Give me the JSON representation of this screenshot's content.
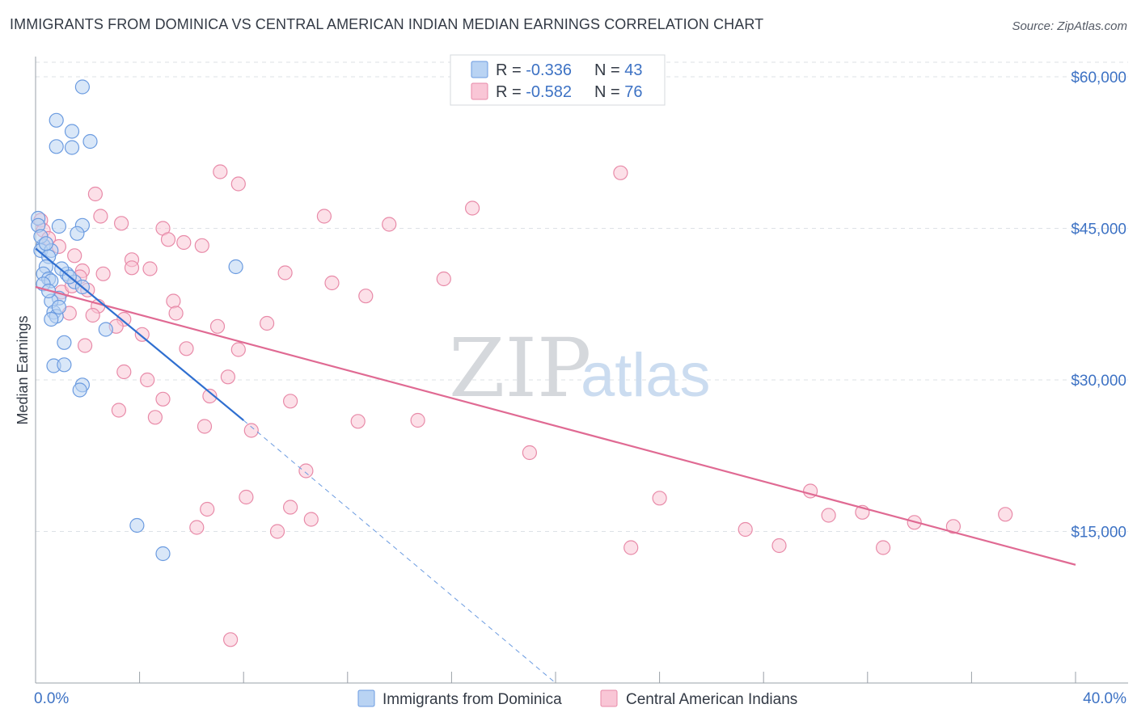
{
  "header": {
    "title": "IMMIGRANTS FROM DOMINICA VS CENTRAL AMERICAN INDIAN MEDIAN EARNINGS CORRELATION CHART",
    "source": "Source: ZipAtlas.com"
  },
  "watermark": {
    "zip": "ZIP",
    "atlas": "atlas"
  },
  "colors": {
    "blue_fill": "#b9d3f3",
    "blue_stroke": "#6b9be0",
    "blue_line": "#2f6fd0",
    "pink_fill": "#f9c6d6",
    "pink_stroke": "#e88aa8",
    "pink_line": "#e06a93",
    "grid": "#dde1e6",
    "axis_text": "#3d72c4"
  },
  "legend": {
    "rows": [
      {
        "r_label": "R = ",
        "r_value": "-0.336",
        "n_label": "N = ",
        "n_value": "43"
      },
      {
        "r_label": "R = ",
        "r_value": "-0.582",
        "n_label": "N = ",
        "n_value": "76"
      }
    ]
  },
  "chart_data": {
    "type": "scatter",
    "title": "IMMIGRANTS FROM DOMINICA VS CENTRAL AMERICAN INDIAN MEDIAN EARNINGS CORRELATION CHART",
    "xlabel": "",
    "ylabel": "Median Earnings",
    "xlim": [
      0,
      40
    ],
    "ylim": [
      0,
      62000
    ],
    "x_tick_labels": [
      "0.0%",
      "40.0%"
    ],
    "y_ticks": [
      15000,
      30000,
      45000,
      60000
    ],
    "y_tick_labels": [
      "$15,000",
      "$30,000",
      "$45,000",
      "$60,000"
    ],
    "grid": true,
    "legend_position": "top-center",
    "series": [
      {
        "name": "Immigrants from Dominica",
        "R": -0.336,
        "N": 43,
        "trend": {
          "x": [
            0.0,
            8.0
          ],
          "y": [
            43000,
            26000
          ]
        },
        "trend_extension": {
          "x": [
            8.0,
            20.0
          ],
          "y": [
            26000,
            0
          ]
        },
        "points": [
          [
            1.8,
            59000
          ],
          [
            0.8,
            55700
          ],
          [
            1.4,
            54600
          ],
          [
            0.8,
            53100
          ],
          [
            2.1,
            53600
          ],
          [
            1.4,
            53000
          ],
          [
            0.1,
            46000
          ],
          [
            1.8,
            45300
          ],
          [
            0.1,
            45300
          ],
          [
            0.9,
            45200
          ],
          [
            1.6,
            44500
          ],
          [
            0.3,
            43300
          ],
          [
            0.2,
            42800
          ],
          [
            0.6,
            42800
          ],
          [
            0.5,
            42200
          ],
          [
            7.7,
            41200
          ],
          [
            0.4,
            41200
          ],
          [
            0.3,
            40500
          ],
          [
            1.2,
            40500
          ],
          [
            0.5,
            40000
          ],
          [
            0.6,
            39800
          ],
          [
            1.5,
            39700
          ],
          [
            1.8,
            39200
          ],
          [
            0.9,
            38100
          ],
          [
            0.6,
            37800
          ],
          [
            0.7,
            36700
          ],
          [
            0.8,
            36300
          ],
          [
            0.6,
            36000
          ],
          [
            2.7,
            35000
          ],
          [
            1.1,
            33700
          ],
          [
            0.7,
            31400
          ],
          [
            1.1,
            31500
          ],
          [
            1.8,
            29500
          ],
          [
            1.7,
            29000
          ],
          [
            3.9,
            15600
          ],
          [
            4.9,
            12800
          ],
          [
            0.2,
            44200
          ],
          [
            0.4,
            43500
          ],
          [
            1.0,
            41000
          ],
          [
            0.3,
            39500
          ],
          [
            0.9,
            37200
          ],
          [
            1.3,
            40200
          ],
          [
            0.5,
            38800
          ]
        ]
      },
      {
        "name": "Central American Indians",
        "R": -0.582,
        "N": 76,
        "trend": {
          "x": [
            0.0,
            40.0
          ],
          "y": [
            39200,
            11700
          ]
        },
        "points": [
          [
            0.2,
            45800
          ],
          [
            0.3,
            44800
          ],
          [
            0.5,
            44000
          ],
          [
            0.9,
            43200
          ],
          [
            1.5,
            42300
          ],
          [
            1.8,
            40800
          ],
          [
            1.7,
            40200
          ],
          [
            2.3,
            48400
          ],
          [
            2.5,
            46200
          ],
          [
            3.3,
            45500
          ],
          [
            4.9,
            45000
          ],
          [
            5.1,
            43900
          ],
          [
            5.7,
            43600
          ],
          [
            6.4,
            43300
          ],
          [
            3.7,
            41900
          ],
          [
            4.4,
            41000
          ],
          [
            3.7,
            41100
          ],
          [
            2.6,
            40500
          ],
          [
            1.0,
            38700
          ],
          [
            1.3,
            36600
          ],
          [
            2.4,
            37300
          ],
          [
            3.4,
            36000
          ],
          [
            3.1,
            35300
          ],
          [
            5.3,
            37800
          ],
          [
            5.4,
            36600
          ],
          [
            7.0,
            35300
          ],
          [
            8.9,
            35600
          ],
          [
            4.1,
            34500
          ],
          [
            1.9,
            33400
          ],
          [
            5.8,
            33100
          ],
          [
            7.8,
            33000
          ],
          [
            3.4,
            30800
          ],
          [
            4.3,
            30000
          ],
          [
            7.4,
            30300
          ],
          [
            3.2,
            27000
          ],
          [
            4.9,
            28100
          ],
          [
            6.7,
            28400
          ],
          [
            4.6,
            26300
          ],
          [
            6.5,
            25400
          ],
          [
            8.3,
            25000
          ],
          [
            9.8,
            27900
          ],
          [
            12.4,
            25900
          ],
          [
            14.7,
            26000
          ],
          [
            7.1,
            50600
          ],
          [
            7.8,
            49400
          ],
          [
            11.1,
            46200
          ],
          [
            13.6,
            45400
          ],
          [
            16.8,
            47000
          ],
          [
            22.5,
            50500
          ],
          [
            9.6,
            40600
          ],
          [
            11.4,
            39600
          ],
          [
            12.7,
            38300
          ],
          [
            15.7,
            40000
          ],
          [
            10.4,
            21000
          ],
          [
            19.0,
            22800
          ],
          [
            8.1,
            18400
          ],
          [
            6.6,
            17200
          ],
          [
            9.8,
            17400
          ],
          [
            6.2,
            15400
          ],
          [
            9.3,
            15000
          ],
          [
            10.6,
            16200
          ],
          [
            22.9,
            13400
          ],
          [
            24.0,
            18300
          ],
          [
            27.3,
            15200
          ],
          [
            28.6,
            13600
          ],
          [
            29.8,
            19000
          ],
          [
            30.5,
            16600
          ],
          [
            31.8,
            16900
          ],
          [
            32.6,
            13400
          ],
          [
            33.8,
            15900
          ],
          [
            35.3,
            15500
          ],
          [
            37.3,
            16700
          ],
          [
            7.5,
            4300
          ],
          [
            2.0,
            38900
          ],
          [
            2.2,
            36400
          ],
          [
            1.4,
            39300
          ]
        ]
      }
    ]
  },
  "bottom_legend": [
    {
      "label": "Immigrants from Dominica"
    },
    {
      "label": "Central American Indians"
    }
  ]
}
